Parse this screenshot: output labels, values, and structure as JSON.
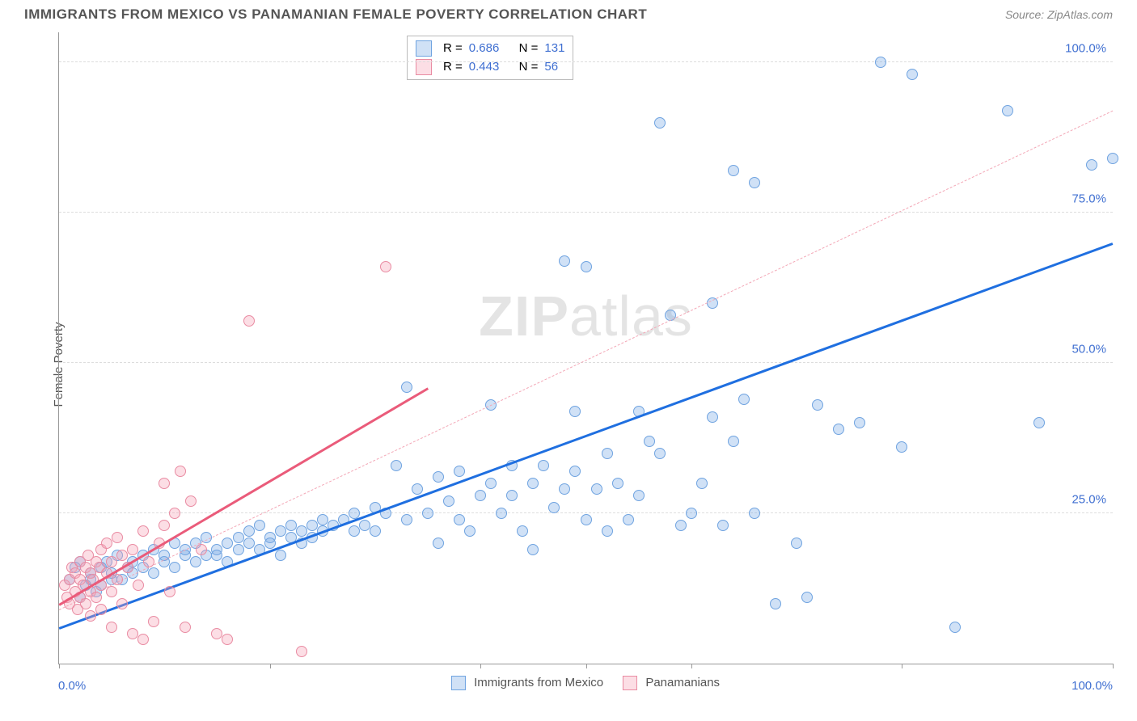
{
  "header": {
    "title": "IMMIGRANTS FROM MEXICO VS PANAMANIAN FEMALE POVERTY CORRELATION CHART",
    "source_prefix": "Source: ",
    "source": "ZipAtlas.com"
  },
  "ylabel": "Female Poverty",
  "watermark": {
    "bold": "ZIP",
    "rest": "atlas"
  },
  "chart": {
    "type": "scatter",
    "xlim": [
      0,
      100
    ],
    "ylim": [
      0,
      105
    ],
    "grid_color": "#dddddd",
    "background_color": "#ffffff",
    "y_ticks": [
      {
        "v": 25,
        "label": "25.0%"
      },
      {
        "v": 50,
        "label": "50.0%"
      },
      {
        "v": 75,
        "label": "75.0%"
      },
      {
        "v": 100,
        "label": "100.0%"
      }
    ],
    "x_axis_marks": [
      0,
      20,
      40,
      50,
      60,
      80,
      100
    ],
    "x_left_label": "0.0%",
    "x_right_label": "100.0%",
    "tick_color": "#3f6fd1"
  },
  "series": [
    {
      "id": "mexico",
      "label": "Immigrants from Mexico",
      "fill": "rgba(120,170,230,0.35)",
      "stroke": "#6fa3e0",
      "marker_size": 14,
      "r": "0.686",
      "n": "131",
      "trend": {
        "x1": 0,
        "y1": 6,
        "x2": 100,
        "y2": 70,
        "color": "#1f6fe0",
        "width": 2.5
      },
      "trend_ext": {
        "x1": 0,
        "y1": 9,
        "x2": 100,
        "y2": 92,
        "color": "#f3a7b6",
        "dash": true
      },
      "points": [
        [
          1,
          14
        ],
        [
          1.5,
          16
        ],
        [
          2,
          11
        ],
        [
          2,
          17
        ],
        [
          2.5,
          13
        ],
        [
          3,
          14
        ],
        [
          3,
          15
        ],
        [
          3.5,
          12
        ],
        [
          4,
          16
        ],
        [
          4,
          13
        ],
        [
          4.5,
          17
        ],
        [
          5,
          14
        ],
        [
          5,
          15
        ],
        [
          5.5,
          18
        ],
        [
          6,
          14
        ],
        [
          6.5,
          16
        ],
        [
          7,
          15
        ],
        [
          7,
          17
        ],
        [
          8,
          16
        ],
        [
          8,
          18
        ],
        [
          9,
          15
        ],
        [
          9,
          19
        ],
        [
          10,
          17
        ],
        [
          10,
          18
        ],
        [
          11,
          16
        ],
        [
          11,
          20
        ],
        [
          12,
          18
        ],
        [
          12,
          19
        ],
        [
          13,
          17
        ],
        [
          13,
          20
        ],
        [
          14,
          18
        ],
        [
          14,
          21
        ],
        [
          15,
          19
        ],
        [
          15,
          18
        ],
        [
          16,
          20
        ],
        [
          16,
          17
        ],
        [
          17,
          21
        ],
        [
          17,
          19
        ],
        [
          18,
          20
        ],
        [
          18,
          22
        ],
        [
          19,
          19
        ],
        [
          19,
          23
        ],
        [
          20,
          21
        ],
        [
          20,
          20
        ],
        [
          21,
          22
        ],
        [
          21,
          18
        ],
        [
          22,
          21
        ],
        [
          22,
          23
        ],
        [
          23,
          22
        ],
        [
          23,
          20
        ],
        [
          24,
          23
        ],
        [
          24,
          21
        ],
        [
          25,
          22
        ],
        [
          25,
          24
        ],
        [
          26,
          23
        ],
        [
          27,
          24
        ],
        [
          28,
          22
        ],
        [
          28,
          25
        ],
        [
          29,
          23
        ],
        [
          30,
          26
        ],
        [
          30,
          22
        ],
        [
          31,
          25
        ],
        [
          32,
          33
        ],
        [
          33,
          24
        ],
        [
          33,
          46
        ],
        [
          34,
          29
        ],
        [
          35,
          25
        ],
        [
          36,
          20
        ],
        [
          36,
          31
        ],
        [
          37,
          27
        ],
        [
          38,
          24
        ],
        [
          38,
          32
        ],
        [
          39,
          22
        ],
        [
          40,
          28
        ],
        [
          41,
          30
        ],
        [
          41,
          43
        ],
        [
          42,
          25
        ],
        [
          43,
          28
        ],
        [
          43,
          33
        ],
        [
          44,
          22
        ],
        [
          45,
          30
        ],
        [
          45,
          19
        ],
        [
          46,
          33
        ],
        [
          47,
          26
        ],
        [
          48,
          29
        ],
        [
          48,
          67
        ],
        [
          49,
          42
        ],
        [
          49,
          32
        ],
        [
          50,
          24
        ],
        [
          50,
          66
        ],
        [
          51,
          29
        ],
        [
          52,
          22
        ],
        [
          52,
          35
        ],
        [
          53,
          30
        ],
        [
          54,
          24
        ],
        [
          55,
          28
        ],
        [
          55,
          42
        ],
        [
          56,
          37
        ],
        [
          57,
          35
        ],
        [
          57,
          90
        ],
        [
          58,
          58
        ],
        [
          59,
          23
        ],
        [
          60,
          25
        ],
        [
          61,
          30
        ],
        [
          62,
          41
        ],
        [
          62,
          60
        ],
        [
          63,
          23
        ],
        [
          64,
          37
        ],
        [
          64,
          82
        ],
        [
          65,
          44
        ],
        [
          66,
          25
        ],
        [
          66,
          80
        ],
        [
          68,
          10
        ],
        [
          70,
          20
        ],
        [
          71,
          11
        ],
        [
          72,
          43
        ],
        [
          74,
          39
        ],
        [
          76,
          40
        ],
        [
          78,
          100
        ],
        [
          80,
          36
        ],
        [
          81,
          98
        ],
        [
          85,
          6
        ],
        [
          90,
          92
        ],
        [
          93,
          40
        ],
        [
          98,
          83
        ],
        [
          100,
          84
        ]
      ]
    },
    {
      "id": "panama",
      "label": "Panamanians",
      "fill": "rgba(245,160,180,0.35)",
      "stroke": "#e98ba2",
      "marker_size": 14,
      "r": "0.443",
      "n": "56",
      "trend": {
        "x1": 0,
        "y1": 10,
        "x2": 35,
        "y2": 46,
        "color": "#ea5b7a",
        "width": 2.5
      },
      "points": [
        [
          0.5,
          13
        ],
        [
          0.8,
          11
        ],
        [
          1,
          14
        ],
        [
          1,
          10
        ],
        [
          1.2,
          16
        ],
        [
          1.5,
          12
        ],
        [
          1.5,
          15
        ],
        [
          1.8,
          9
        ],
        [
          2,
          14
        ],
        [
          2,
          17
        ],
        [
          2,
          11
        ],
        [
          2.3,
          13
        ],
        [
          2.5,
          16
        ],
        [
          2.5,
          10
        ],
        [
          2.8,
          18
        ],
        [
          3,
          12
        ],
        [
          3,
          15
        ],
        [
          3,
          8
        ],
        [
          3.2,
          14
        ],
        [
          3.5,
          17
        ],
        [
          3.5,
          11
        ],
        [
          3.8,
          16
        ],
        [
          4,
          13
        ],
        [
          4,
          19
        ],
        [
          4,
          9
        ],
        [
          4.5,
          15
        ],
        [
          4.5,
          20
        ],
        [
          5,
          12
        ],
        [
          5,
          17
        ],
        [
          5,
          6
        ],
        [
          5.5,
          14
        ],
        [
          5.5,
          21
        ],
        [
          6,
          18
        ],
        [
          6,
          10
        ],
        [
          6.5,
          16
        ],
        [
          7,
          5
        ],
        [
          7,
          19
        ],
        [
          7.5,
          13
        ],
        [
          8,
          22
        ],
        [
          8,
          4
        ],
        [
          8.5,
          17
        ],
        [
          9,
          7
        ],
        [
          9.5,
          20
        ],
        [
          10,
          30
        ],
        [
          10,
          23
        ],
        [
          10.5,
          12
        ],
        [
          11,
          25
        ],
        [
          11.5,
          32
        ],
        [
          12,
          6
        ],
        [
          12.5,
          27
        ],
        [
          13.5,
          19
        ],
        [
          15,
          5
        ],
        [
          16,
          4
        ],
        [
          18,
          57
        ],
        [
          23,
          2
        ],
        [
          31,
          66
        ]
      ]
    }
  ],
  "stats_box": {
    "r_label": "R =",
    "n_label": "N ="
  },
  "x_legend": {
    "series_a": "Immigrants from Mexico",
    "series_b": "Panamanians"
  }
}
